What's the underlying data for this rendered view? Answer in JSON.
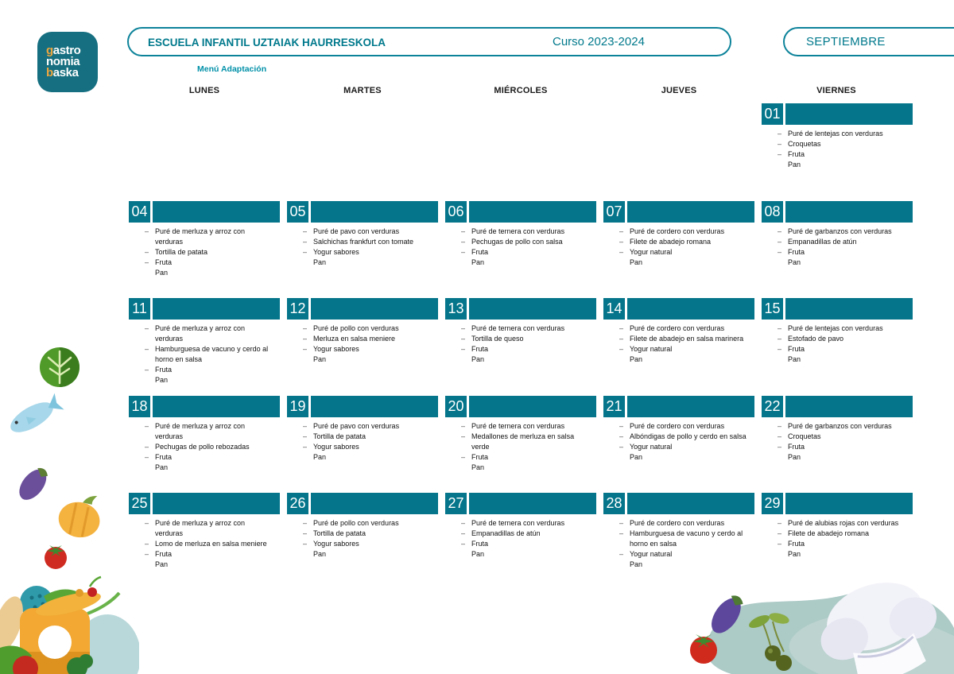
{
  "header": {
    "school": "ESCUELA INFANTIL UZTAIAK HAURRESKOLA",
    "course": "Curso 2023-2024",
    "month": "SEPTIEMBRE",
    "menu_type": "Menú Adaptación"
  },
  "logo": {
    "lines": [
      {
        "accent": "g",
        "rest": "astro"
      },
      {
        "accent": "",
        "rest": "nomia"
      },
      {
        "accent": "b",
        "rest": "aska"
      }
    ]
  },
  "colors": {
    "teal_header": "#04758a",
    "teal_border": "#0d839a",
    "teal_text": "#00798c",
    "logo_background": "#156f80",
    "logo_accent_orange": "#eca63f"
  },
  "calendar": {
    "weekdays": [
      "LUNES",
      "MARTES",
      "MIÉRCOLES",
      "JUEVES",
      "VIERNES"
    ],
    "dash_char": "–",
    "days": [
      {
        "num": "01",
        "row": 0,
        "col": 4,
        "items": [
          {
            "text": "Puré de lentejas con verduras",
            "dash": true
          },
          {
            "text": "Croquetas",
            "dash": true
          },
          {
            "text": "Fruta",
            "dash": true
          },
          {
            "text": "Pan",
            "dash": false
          }
        ]
      },
      {
        "num": "04",
        "row": 1,
        "col": 0,
        "items": [
          {
            "text": "Puré de merluza y arroz con verduras",
            "dash": true
          },
          {
            "text": "Tortilla de patata",
            "dash": true
          },
          {
            "text": "Fruta",
            "dash": true
          },
          {
            "text": "Pan",
            "dash": false
          }
        ]
      },
      {
        "num": "05",
        "row": 1,
        "col": 1,
        "items": [
          {
            "text": "Puré de pavo con verduras",
            "dash": true
          },
          {
            "text": "Salchichas frankfurt con tomate",
            "dash": true
          },
          {
            "text": "Yogur sabores",
            "dash": true
          },
          {
            "text": "Pan",
            "dash": false
          }
        ]
      },
      {
        "num": "06",
        "row": 1,
        "col": 2,
        "items": [
          {
            "text": "Puré de ternera con verduras",
            "dash": true
          },
          {
            "text": "Pechugas de pollo con salsa",
            "dash": true
          },
          {
            "text": "Fruta",
            "dash": true
          },
          {
            "text": "Pan",
            "dash": false
          }
        ]
      },
      {
        "num": "07",
        "row": 1,
        "col": 3,
        "items": [
          {
            "text": "Puré de cordero con verduras",
            "dash": true
          },
          {
            "text": "Filete de abadejo romana",
            "dash": true
          },
          {
            "text": "Yogur natural",
            "dash": true
          },
          {
            "text": "Pan",
            "dash": false
          }
        ]
      },
      {
        "num": "08",
        "row": 1,
        "col": 4,
        "items": [
          {
            "text": "Puré de garbanzos con verduras",
            "dash": true
          },
          {
            "text": "Empanadillas de atún",
            "dash": true
          },
          {
            "text": "Fruta",
            "dash": true
          },
          {
            "text": "Pan",
            "dash": false
          }
        ]
      },
      {
        "num": "11",
        "row": 2,
        "col": 0,
        "items": [
          {
            "text": "Puré de merluza y arroz con verduras",
            "dash": true
          },
          {
            "text": "Hamburguesa de vacuno y cerdo al horno en salsa",
            "dash": true
          },
          {
            "text": "Fruta",
            "dash": true
          },
          {
            "text": "Pan",
            "dash": false
          }
        ]
      },
      {
        "num": "12",
        "row": 2,
        "col": 1,
        "items": [
          {
            "text": "Puré de pollo con verduras",
            "dash": true
          },
          {
            "text": "Merluza en salsa meniere",
            "dash": true
          },
          {
            "text": "Yogur sabores",
            "dash": true
          },
          {
            "text": "Pan",
            "dash": false
          }
        ]
      },
      {
        "num": "13",
        "row": 2,
        "col": 2,
        "items": [
          {
            "text": "Puré de ternera con verduras",
            "dash": true
          },
          {
            "text": "Tortilla de queso",
            "dash": true
          },
          {
            "text": "Fruta",
            "dash": true
          },
          {
            "text": "Pan",
            "dash": false
          }
        ]
      },
      {
        "num": "14",
        "row": 2,
        "col": 3,
        "items": [
          {
            "text": "Puré de cordero con verduras",
            "dash": true
          },
          {
            "text": "Filete de abadejo en salsa marinera",
            "dash": true
          },
          {
            "text": "Yogur natural",
            "dash": true
          },
          {
            "text": "Pan",
            "dash": false
          }
        ]
      },
      {
        "num": "15",
        "row": 2,
        "col": 4,
        "items": [
          {
            "text": "Puré de lentejas con verduras",
            "dash": true
          },
          {
            "text": "Estofado de pavo",
            "dash": true
          },
          {
            "text": "Fruta",
            "dash": true
          },
          {
            "text": "Pan",
            "dash": false
          }
        ]
      },
      {
        "num": "18",
        "row": 3,
        "col": 0,
        "items": [
          {
            "text": "Puré de merluza y arroz con verduras",
            "dash": true
          },
          {
            "text": "Pechugas de pollo rebozadas",
            "dash": true
          },
          {
            "text": "Fruta",
            "dash": true
          },
          {
            "text": "Pan",
            "dash": false
          }
        ]
      },
      {
        "num": "19",
        "row": 3,
        "col": 1,
        "items": [
          {
            "text": "Puré de pavo con verduras",
            "dash": true
          },
          {
            "text": "Tortilla de patata",
            "dash": true
          },
          {
            "text": "Yogur sabores",
            "dash": true
          },
          {
            "text": "Pan",
            "dash": false
          }
        ]
      },
      {
        "num": "20",
        "row": 3,
        "col": 2,
        "items": [
          {
            "text": "Puré de ternera con verduras",
            "dash": true
          },
          {
            "text": "Medallones de merluza en salsa verde",
            "dash": true
          },
          {
            "text": "Fruta",
            "dash": true
          },
          {
            "text": "Pan",
            "dash": false
          }
        ]
      },
      {
        "num": "21",
        "row": 3,
        "col": 3,
        "items": [
          {
            "text": "Puré de cordero con verduras",
            "dash": true
          },
          {
            "text": "Albóndigas de pollo y cerdo en salsa",
            "dash": true
          },
          {
            "text": "Yogur natural",
            "dash": true
          },
          {
            "text": "Pan",
            "dash": false
          }
        ]
      },
      {
        "num": "22",
        "row": 3,
        "col": 4,
        "items": [
          {
            "text": "Puré de garbanzos con verduras",
            "dash": true
          },
          {
            "text": "Croquetas",
            "dash": true
          },
          {
            "text": "Fruta",
            "dash": true
          },
          {
            "text": "Pan",
            "dash": false
          }
        ]
      },
      {
        "num": "25",
        "row": 4,
        "col": 0,
        "items": [
          {
            "text": "Puré de merluza y arroz con verduras",
            "dash": true
          },
          {
            "text": "Lomo de merluza en salsa meniere",
            "dash": true
          },
          {
            "text": "Fruta",
            "dash": true
          },
          {
            "text": "Pan",
            "dash": false
          }
        ]
      },
      {
        "num": "26",
        "row": 4,
        "col": 1,
        "items": [
          {
            "text": "Puré de pollo con verduras",
            "dash": true
          },
          {
            "text": "Tortilla de patata",
            "dash": true
          },
          {
            "text": "Yogur sabores",
            "dash": true
          },
          {
            "text": "Pan",
            "dash": false
          }
        ]
      },
      {
        "num": "27",
        "row": 4,
        "col": 2,
        "items": [
          {
            "text": "Puré de ternera con verduras",
            "dash": true
          },
          {
            "text": "Empanadillas de atún",
            "dash": true
          },
          {
            "text": "Fruta",
            "dash": true
          },
          {
            "text": "Pan",
            "dash": false
          }
        ]
      },
      {
        "num": "28",
        "row": 4,
        "col": 3,
        "items": [
          {
            "text": "Puré de cordero con verduras",
            "dash": true
          },
          {
            "text": "Hamburguesa de vacuno y cerdo al horno en salsa",
            "dash": true
          },
          {
            "text": "Yogur natural",
            "dash": true
          },
          {
            "text": "Pan",
            "dash": false
          }
        ]
      },
      {
        "num": "29",
        "row": 4,
        "col": 4,
        "items": [
          {
            "text": "Puré de alubias rojas con verduras",
            "dash": true
          },
          {
            "text": "Filete de abadejo romana",
            "dash": true
          },
          {
            "text": "Fruta",
            "dash": true
          },
          {
            "text": "Pan",
            "dash": false
          }
        ]
      }
    ]
  }
}
